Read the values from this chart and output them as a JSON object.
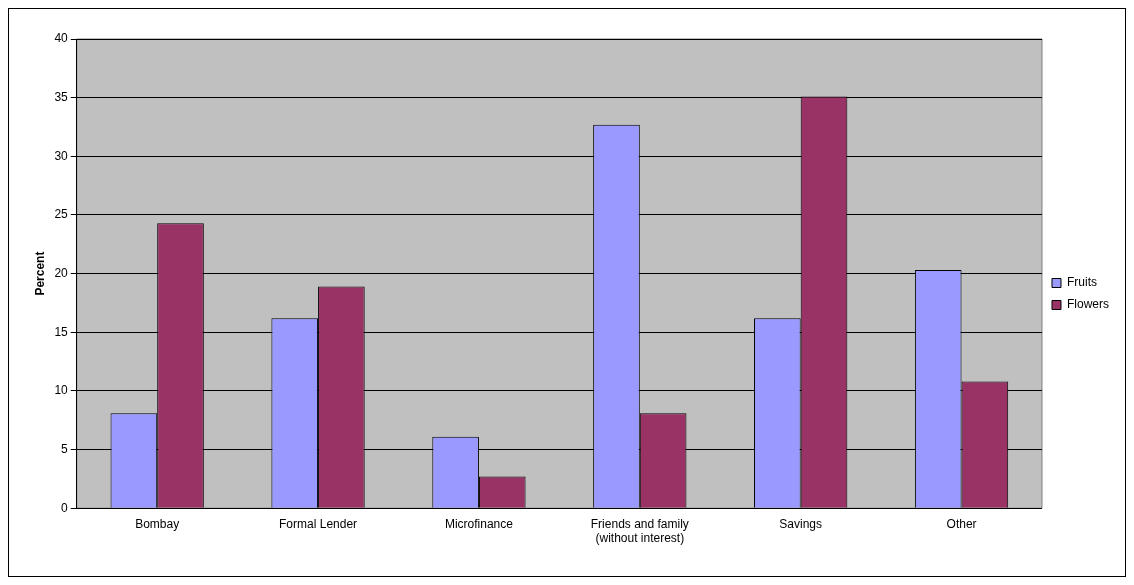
{
  "chart_data": {
    "type": "bar",
    "ylabel": "Percent",
    "categories": [
      "Bombay",
      "Formal Lender",
      "Microfinance",
      "Friends and family (without interest)",
      "Savings",
      "Other"
    ],
    "series": [
      {
        "name": "Fruits",
        "color": "#9999ff",
        "values": [
          8.1,
          16.2,
          6.1,
          32.7,
          16.2,
          20.3
        ]
      },
      {
        "name": "Flowers",
        "color": "#993366",
        "values": [
          24.3,
          18.9,
          2.7,
          8.1,
          35.1,
          10.8
        ]
      }
    ],
    "ylim": [
      0,
      40
    ],
    "yticks": [
      0,
      5,
      10,
      15,
      20,
      25,
      30,
      35,
      40
    ],
    "grid": "y",
    "legend": "right"
  }
}
